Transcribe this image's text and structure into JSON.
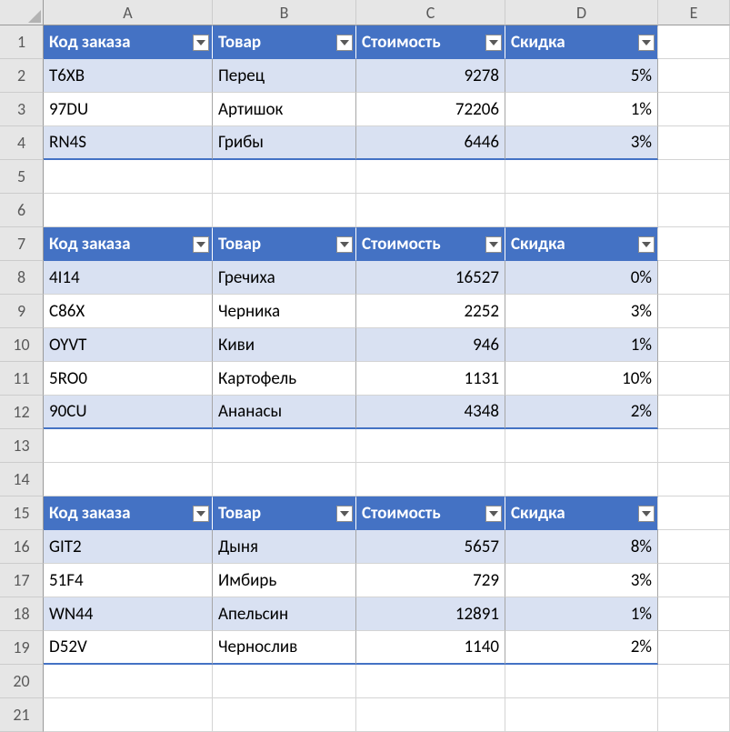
{
  "columns": [
    "A",
    "B",
    "C",
    "D",
    "E"
  ],
  "row_count": 21,
  "colors": {
    "table_header_bg": "#4472c4",
    "table_header_fg": "#ffffff",
    "band_bg": "#d9e1f2",
    "grid_hdr_bg": "#e6e6e6"
  },
  "headers": [
    "Код заказа",
    "Товар",
    "Стоимость",
    "Скидка"
  ],
  "tables": [
    {
      "header_row": 1,
      "rows": [
        {
          "r": 2,
          "a": "T6XB",
          "b": "Перец",
          "c": "9278",
          "d": "5%",
          "band": true
        },
        {
          "r": 3,
          "a": "97DU",
          "b": "Артишок",
          "c": "72206",
          "d": "1%",
          "band": false
        },
        {
          "r": 4,
          "a": "RN4S",
          "b": "Грибы",
          "c": "6446",
          "d": "3%",
          "band": true
        }
      ]
    },
    {
      "header_row": 7,
      "rows": [
        {
          "r": 8,
          "a": "4I14",
          "b": "Гречиха",
          "c": "16527",
          "d": "0%",
          "band": true
        },
        {
          "r": 9,
          "a": "C86X",
          "b": "Черника",
          "c": "2252",
          "d": "3%",
          "band": false
        },
        {
          "r": 10,
          "a": "OYVT",
          "b": "Киви",
          "c": "946",
          "d": "1%",
          "band": true
        },
        {
          "r": 11,
          "a": "5RO0",
          "b": "Картофель",
          "c": "1131",
          "d": "10%",
          "band": false
        },
        {
          "r": 12,
          "a": "90CU",
          "b": "Ананасы",
          "c": "4348",
          "d": "2%",
          "band": true
        }
      ]
    },
    {
      "header_row": 15,
      "rows": [
        {
          "r": 16,
          "a": "GIT2",
          "b": "Дыня",
          "c": "5657",
          "d": "8%",
          "band": true
        },
        {
          "r": 17,
          "a": "51F4",
          "b": "Имбирь",
          "c": "729",
          "d": "3%",
          "band": false
        },
        {
          "r": 18,
          "a": "WN44",
          "b": "Апельсин",
          "c": "12891",
          "d": "1%",
          "band": true
        },
        {
          "r": 19,
          "a": "D52V",
          "b": "Чернослив",
          "c": "1140",
          "d": "2%",
          "band": false
        }
      ]
    }
  ]
}
